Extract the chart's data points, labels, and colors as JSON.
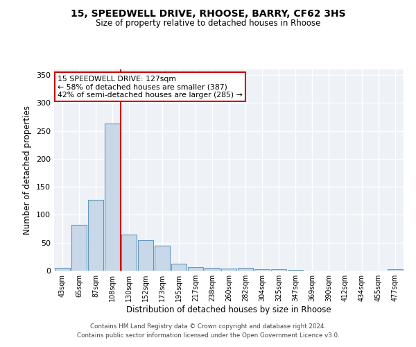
{
  "title1": "15, SPEEDWELL DRIVE, RHOOSE, BARRY, CF62 3HS",
  "title2": "Size of property relative to detached houses in Rhoose",
  "xlabel": "Distribution of detached houses by size in Rhoose",
  "ylabel": "Number of detached properties",
  "categories": [
    "43sqm",
    "65sqm",
    "87sqm",
    "108sqm",
    "130sqm",
    "152sqm",
    "173sqm",
    "195sqm",
    "217sqm",
    "238sqm",
    "260sqm",
    "282sqm",
    "304sqm",
    "325sqm",
    "347sqm",
    "369sqm",
    "390sqm",
    "412sqm",
    "434sqm",
    "455sqm",
    "477sqm"
  ],
  "values": [
    5,
    82,
    127,
    263,
    65,
    55,
    45,
    12,
    6,
    5,
    4,
    5,
    2,
    2,
    1,
    0,
    0,
    0,
    0,
    0,
    2
  ],
  "bar_color": "#c8d8e8",
  "bar_edge_color": "#6699bb",
  "vline_color": "#cc0000",
  "annotation_text": "15 SPEEDWELL DRIVE: 127sqm\n← 58% of detached houses are smaller (387)\n42% of semi-detached houses are larger (285) →",
  "annotation_box_color": "#ffffff",
  "annotation_box_edge": "#cc0000",
  "background_color": "#ffffff",
  "plot_bg_color": "#eef2f7",
  "grid_color": "#ffffff",
  "footer1": "Contains HM Land Registry data © Crown copyright and database right 2024.",
  "footer2": "Contains public sector information licensed under the Open Government Licence v3.0.",
  "ylim": [
    0,
    360
  ],
  "yticks": [
    0,
    50,
    100,
    150,
    200,
    250,
    300,
    350
  ]
}
